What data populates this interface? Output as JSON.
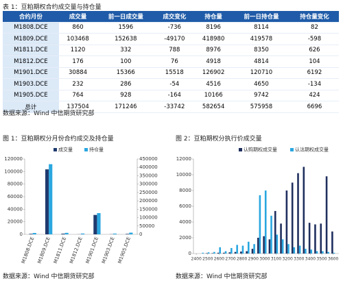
{
  "table": {
    "title": "表 1：豆粕期权合约成交量与持仓量",
    "header": [
      "合约月份",
      "成交量",
      "前一日成交量",
      "成交变化",
      "持仓量",
      "前一日持仓量",
      "持仓量变化"
    ],
    "rows": [
      [
        "M1808.DCE",
        860,
        1596,
        -736,
        8196,
        8114,
        82
      ],
      [
        "M1809.DCE",
        103468,
        152638,
        -49170,
        418980,
        419578,
        -598
      ],
      [
        "M1811.DCE",
        1120,
        332,
        788,
        8976,
        8350,
        626
      ],
      [
        "M1812.DCE",
        176,
        100,
        76,
        4918,
        4814,
        104
      ],
      [
        "M1901.DCE",
        30884,
        15366,
        15518,
        126902,
        120710,
        6192
      ],
      [
        "M1903.DCE",
        232,
        286,
        -54,
        4516,
        4650,
        -134
      ],
      [
        "M1905.DCE",
        764,
        928,
        -164,
        10166,
        9742,
        424
      ],
      [
        "总计",
        137504,
        171246,
        -33742,
        582654,
        575958,
        6696
      ]
    ],
    "source": "数据来源：Wind 中信期货研究部"
  },
  "figures": [
    {
      "title": "图 1：豆粕期权分月份合约成交及持仓量",
      "source": "数据来源：Wind 中信期货研究部",
      "chart": {
        "type": "bar",
        "categories": [
          "M1808.DCE",
          "M1809.DCE",
          "M1811.DCE",
          "M1812.DCE",
          "M1901.DCE",
          "M1903.DCE",
          "M1905.DCE"
        ],
        "series": [
          {
            "name": "成交量",
            "color": "#1f3a6e",
            "values": [
              860,
              103468,
              1120,
              176,
              30884,
              232,
              764
            ]
          },
          {
            "name": "持仓量",
            "color": "#2aa7e0",
            "axis": "y2",
            "values": [
              8196,
              418980,
              8976,
              4918,
              126902,
              4516,
              10166
            ]
          }
        ],
        "ylim": [
          0,
          120000
        ],
        "yticks": [
          0,
          20000,
          40000,
          60000,
          80000,
          100000,
          120000
        ],
        "y2lim": [
          0,
          450000
        ],
        "y2ticks": [
          0,
          50000,
          100000,
          150000,
          200000,
          250000,
          300000,
          350000,
          400000,
          450000
        ]
      }
    },
    {
      "title": "图 2：豆粕期权分执行价成交量",
      "source": "数据来源：Wind 中信期货研究部",
      "chart": {
        "type": "bar",
        "x": [
          2400,
          2450,
          2500,
          2550,
          2600,
          2650,
          2700,
          2750,
          2800,
          2850,
          2900,
          2950,
          3000,
          3050,
          3100,
          3150,
          3200,
          3250,
          3300,
          3350,
          3400,
          3450,
          3500,
          3550,
          3600
        ],
        "series": [
          {
            "name": "认购期权成交量",
            "color": "#1f2f5e",
            "values": [
              0,
              0,
              50,
              50,
              100,
              100,
              150,
              200,
              250,
              300,
              600,
              2000,
              2200,
              1800,
              5400,
              3800,
              8000,
              9000,
              10200,
              11000,
              3900,
              3700,
              3800,
              9800,
              2800
            ]
          },
          {
            "name": "认沽期权成交量",
            "color": "#2aa7e0",
            "values": [
              0,
              100,
              150,
              200,
              800,
              300,
              700,
              1100,
              1000,
              1500,
              1200,
              7400,
              8000,
              4800,
              2400,
              1800,
              1200,
              800,
              1000,
              600,
              500,
              300,
              300,
              200,
              100
            ]
          }
        ],
        "xlim": [
          2375,
          3650
        ],
        "xticks": [
          2400,
          2500,
          2600,
          2700,
          2800,
          2900,
          3000,
          3100,
          3200,
          3300,
          3400,
          3500,
          3600
        ],
        "ylim": [
          0,
          12000
        ],
        "yticks": [
          0,
          2000,
          4000,
          6000,
          8000,
          10000,
          12000
        ]
      }
    }
  ]
}
